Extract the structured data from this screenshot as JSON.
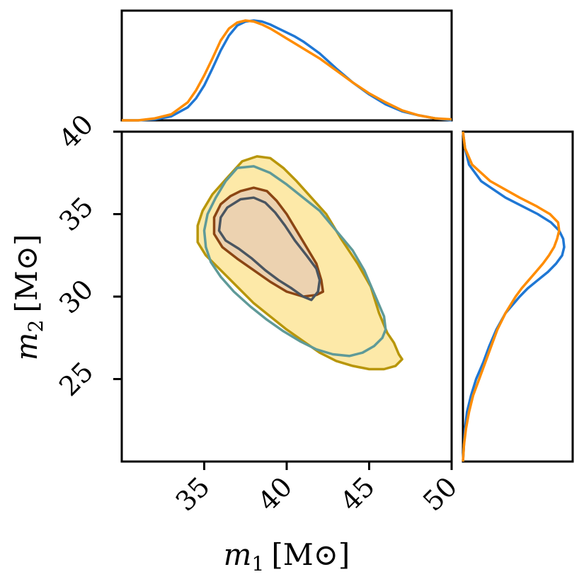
{
  "colors": {
    "posterior_a": "#1f77d4",
    "posterior_b": "#ff8c00",
    "region_b_outer_fill": "#fde9a8",
    "region_b_outer_edge": "#b8960a",
    "region_b_inner_fill": "#ecd2b0",
    "region_b_inner_edge": "#8b4513",
    "region_a_outer_edge": "#5f9a98",
    "region_a_inner_edge": "#4a5560"
  },
  "chart_data": [
    {
      "panel": "joint",
      "type": "contour",
      "xlabel": "m",
      "xlabel_sub": "1",
      "xlabel_unit": "[M",
      "xlabel_unit_sym": "⊙",
      "xlabel_unit_close": "]",
      "ylabel": "m",
      "ylabel_sub": "2",
      "ylabel_unit": "[M",
      "ylabel_unit_sym": "⊙",
      "ylabel_unit_close": "]",
      "xlim": [
        30,
        50
      ],
      "ylim": [
        20,
        40
      ],
      "x_ticks": [
        35,
        40,
        45,
        50
      ],
      "y_ticks": [
        25,
        30,
        35,
        40
      ],
      "x_tick_labels": [
        "35",
        "40",
        "45",
        "50"
      ],
      "y_tick_labels": [
        "25",
        "30",
        "35",
        "40"
      ],
      "grid": false,
      "series": [
        {
          "key": "b_outer",
          "fill": true,
          "points": [
            [
              37.3,
              38.2
            ],
            [
              38.2,
              38.5
            ],
            [
              39.0,
              38.4
            ],
            [
              39.8,
              37.8
            ],
            [
              40.6,
              37.0
            ],
            [
              41.5,
              36.0
            ],
            [
              42.4,
              35.0
            ],
            [
              43.3,
              33.5
            ],
            [
              44.3,
              32.0
            ],
            [
              45.1,
              30.6
            ],
            [
              45.6,
              29.0
            ],
            [
              46.1,
              27.8
            ],
            [
              46.5,
              27.2
            ],
            [
              46.8,
              26.5
            ],
            [
              47.0,
              26.2
            ],
            [
              46.6,
              25.8
            ],
            [
              45.9,
              25.6
            ],
            [
              45.0,
              25.6
            ],
            [
              44.0,
              25.8
            ],
            [
              43.0,
              26.1
            ],
            [
              42.0,
              26.6
            ],
            [
              41.0,
              27.3
            ],
            [
              40.0,
              28.0
            ],
            [
              39.0,
              28.8
            ],
            [
              38.0,
              29.6
            ],
            [
              37.0,
              30.6
            ],
            [
              36.0,
              31.6
            ],
            [
              35.1,
              32.5
            ],
            [
              34.6,
              33.3
            ],
            [
              34.6,
              34.3
            ],
            [
              34.9,
              35.2
            ],
            [
              35.5,
              36.2
            ],
            [
              36.3,
              37.1
            ]
          ]
        },
        {
          "key": "a_outer",
          "fill": false,
          "points": [
            [
              37.0,
              37.8
            ],
            [
              38.0,
              37.9
            ],
            [
              39.0,
              37.5
            ],
            [
              40.0,
              36.8
            ],
            [
              41.0,
              36.0
            ],
            [
              42.0,
              35.2
            ],
            [
              43.0,
              34.0
            ],
            [
              44.0,
              32.8
            ],
            [
              44.7,
              31.6
            ],
            [
              45.3,
              30.2
            ],
            [
              45.9,
              28.8
            ],
            [
              46.0,
              28.0
            ],
            [
              45.8,
              27.5
            ],
            [
              45.3,
              27.0
            ],
            [
              44.6,
              26.6
            ],
            [
              43.8,
              26.4
            ],
            [
              42.8,
              26.5
            ],
            [
              41.8,
              26.8
            ],
            [
              40.8,
              27.3
            ],
            [
              39.8,
              27.9
            ],
            [
              38.8,
              28.6
            ],
            [
              37.8,
              29.4
            ],
            [
              36.8,
              30.3
            ],
            [
              36.0,
              31.2
            ],
            [
              35.4,
              32.1
            ],
            [
              35.1,
              33.0
            ],
            [
              35.0,
              34.0
            ],
            [
              35.2,
              35.0
            ],
            [
              35.7,
              36.0
            ],
            [
              36.3,
              37.0
            ]
          ]
        },
        {
          "key": "b_inner",
          "fill": true,
          "points": [
            [
              37.2,
              36.4
            ],
            [
              38.0,
              36.6
            ],
            [
              38.8,
              36.4
            ],
            [
              39.4,
              35.8
            ],
            [
              40.0,
              35.0
            ],
            [
              40.6,
              34.0
            ],
            [
              41.2,
              33.0
            ],
            [
              41.8,
              32.0
            ],
            [
              42.1,
              31.0
            ],
            [
              42.2,
              30.3
            ],
            [
              41.8,
              30.1
            ],
            [
              41.0,
              30.0
            ],
            [
              40.0,
              30.3
            ],
            [
              39.0,
              30.9
            ],
            [
              38.0,
              31.6
            ],
            [
              37.0,
              32.3
            ],
            [
              36.1,
              33.0
            ],
            [
              35.6,
              33.8
            ],
            [
              35.6,
              34.8
            ],
            [
              36.0,
              35.6
            ],
            [
              36.6,
              36.1
            ]
          ]
        },
        {
          "key": "a_inner",
          "fill": false,
          "points": [
            [
              37.2,
              35.9
            ],
            [
              38.0,
              36.0
            ],
            [
              38.7,
              35.7
            ],
            [
              39.3,
              35.1
            ],
            [
              39.9,
              34.3
            ],
            [
              40.5,
              33.4
            ],
            [
              41.2,
              32.5
            ],
            [
              41.8,
              31.7
            ],
            [
              42.0,
              31.0
            ],
            [
              41.9,
              30.3
            ],
            [
              41.5,
              29.8
            ],
            [
              41.0,
              30.0
            ],
            [
              40.3,
              30.5
            ],
            [
              39.5,
              31.0
            ],
            [
              38.7,
              31.6
            ],
            [
              37.9,
              32.3
            ],
            [
              37.1,
              32.9
            ],
            [
              36.3,
              33.4
            ],
            [
              35.9,
              34.0
            ],
            [
              36.0,
              34.8
            ],
            [
              36.4,
              35.4
            ]
          ]
        }
      ]
    },
    {
      "panel": "top_marginal",
      "type": "line",
      "xlim": [
        30,
        50
      ],
      "series": [
        {
          "key": "a",
          "x": [
            30,
            31,
            32,
            33,
            34,
            34.5,
            35,
            35.5,
            36,
            36.5,
            37,
            37.5,
            38,
            38.5,
            39,
            39.5,
            40,
            40.5,
            41,
            42,
            43,
            44,
            45,
            46,
            47,
            48,
            49,
            50
          ],
          "y": [
            0,
            0,
            0.01,
            0.04,
            0.13,
            0.22,
            0.35,
            0.52,
            0.7,
            0.85,
            0.95,
            0.99,
            1.0,
            0.99,
            0.96,
            0.92,
            0.88,
            0.84,
            0.79,
            0.67,
            0.52,
            0.38,
            0.26,
            0.16,
            0.09,
            0.05,
            0.02,
            0.0
          ]
        },
        {
          "key": "b",
          "x": [
            30,
            31,
            32,
            33,
            34,
            34.5,
            35,
            35.5,
            36,
            36.5,
            37,
            37.5,
            38,
            38.5,
            39,
            39.5,
            40,
            40.5,
            41,
            42,
            43,
            44,
            45,
            46,
            47,
            48,
            49,
            50
          ],
          "y": [
            0,
            0,
            0.02,
            0.06,
            0.18,
            0.3,
            0.45,
            0.62,
            0.8,
            0.92,
            0.98,
            1.0,
            0.99,
            0.96,
            0.92,
            0.87,
            0.82,
            0.77,
            0.72,
            0.62,
            0.5,
            0.38,
            0.27,
            0.18,
            0.1,
            0.05,
            0.02,
            0.01
          ]
        }
      ]
    },
    {
      "panel": "right_marginal",
      "type": "line",
      "ylim": [
        20,
        40
      ],
      "series": [
        {
          "key": "a",
          "y": [
            20,
            21,
            22,
            23,
            24,
            25,
            26,
            27,
            28,
            29,
            30,
            30.5,
            31,
            31.5,
            32,
            32.5,
            33,
            33.5,
            34,
            34.5,
            35,
            35.5,
            36,
            37,
            38,
            39,
            40
          ],
          "x": [
            0,
            0.01,
            0.02,
            0.04,
            0.08,
            0.13,
            0.2,
            0.26,
            0.33,
            0.42,
            0.56,
            0.64,
            0.74,
            0.84,
            0.92,
            0.98,
            1.0,
            0.99,
            0.95,
            0.87,
            0.74,
            0.58,
            0.42,
            0.18,
            0.06,
            0.02,
            0.0
          ]
        },
        {
          "key": "b",
          "y": [
            20,
            21,
            22,
            23,
            24,
            25,
            26,
            27,
            28,
            29,
            30,
            30.5,
            31,
            31.5,
            32,
            32.5,
            33,
            33.5,
            34,
            34.5,
            35,
            35.5,
            36,
            37,
            38,
            39,
            40
          ],
          "x": [
            0,
            0.01,
            0.03,
            0.06,
            0.1,
            0.16,
            0.22,
            0.28,
            0.34,
            0.42,
            0.52,
            0.58,
            0.65,
            0.72,
            0.79,
            0.85,
            0.9,
            0.93,
            0.95,
            0.94,
            0.86,
            0.72,
            0.56,
            0.27,
            0.09,
            0.02,
            0.0
          ]
        }
      ]
    }
  ]
}
